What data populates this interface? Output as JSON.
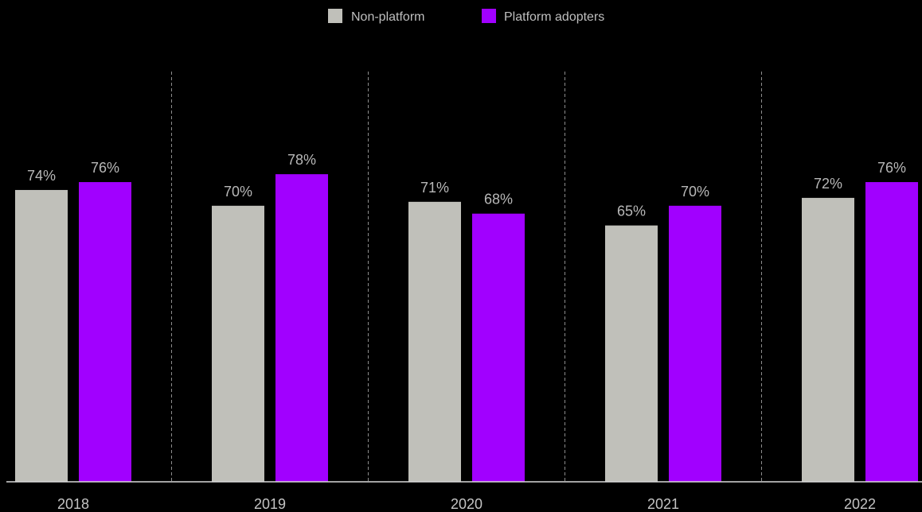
{
  "chart_data": {
    "type": "bar",
    "title": "",
    "xlabel": "",
    "ylabel": "",
    "ylim": [
      0,
      100
    ],
    "grid": false,
    "legend_position": "top-center",
    "categories": [
      "2018",
      "2019",
      "2020",
      "2021",
      "2022"
    ],
    "series": [
      {
        "name": "Non-platform",
        "color": "#c0c0ba",
        "values": [
          74,
          70,
          71,
          65,
          72
        ],
        "labels": [
          "74%",
          "70%",
          "71%",
          "65%",
          "72%"
        ]
      },
      {
        "name": "Platform adopters",
        "color": "#a100ff",
        "values": [
          76,
          78,
          68,
          70,
          76
        ],
        "labels": [
          "76%",
          "78%",
          "68%",
          "70%",
          "76%"
        ]
      }
    ],
    "category_separators": "dashed"
  },
  "colors": {
    "background": "#000000",
    "axis": "#d9d9d9",
    "separator": "#8c8c8c"
  }
}
